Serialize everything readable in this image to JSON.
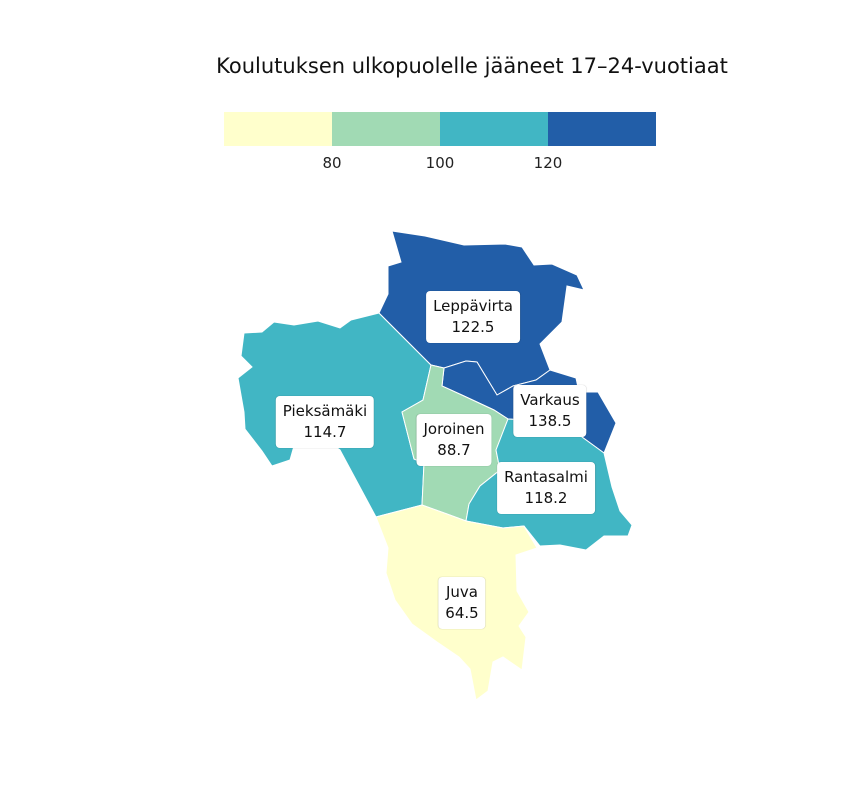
{
  "title": "Koulutuksen ulkopuolelle jääneet 17–24-vuotiaat",
  "legend": {
    "bins": [
      {
        "color": "#ffffcc"
      },
      {
        "color": "#a1dab4"
      },
      {
        "color": "#41b6c4"
      },
      {
        "color": "#225ea8"
      }
    ],
    "ticks": [
      "80",
      "100",
      "120"
    ]
  },
  "regions": [
    {
      "name": "Leppävirta",
      "value": "122.5",
      "color": "#225ea8"
    },
    {
      "name": "Varkaus",
      "value": "138.5",
      "color": "#225ea8"
    },
    {
      "name": "Pieksämäki",
      "value": "114.7",
      "color": "#41b6c4"
    },
    {
      "name": "Rantasalmi",
      "value": "118.2",
      "color": "#41b6c4"
    },
    {
      "name": "Joroinen",
      "value": "88.7",
      "color": "#a1dab4"
    },
    {
      "name": "Juva",
      "value": "64.5",
      "color": "#ffffcc"
    }
  ]
}
